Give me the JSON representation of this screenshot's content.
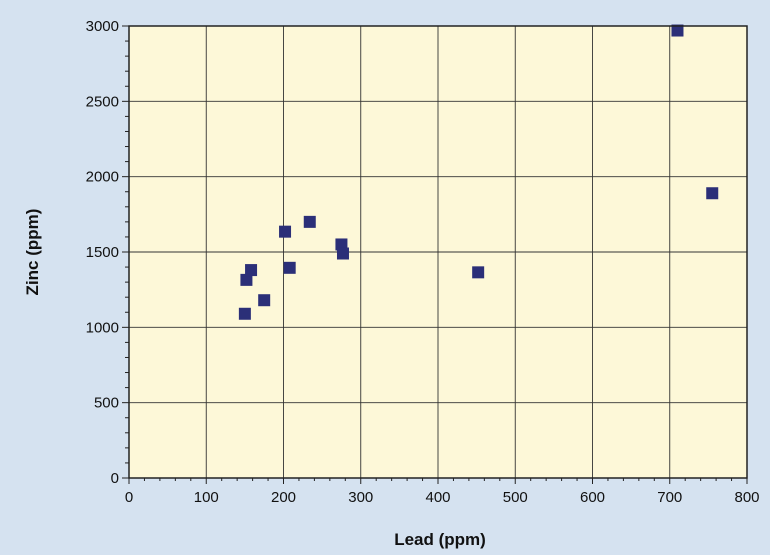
{
  "chart_data": {
    "type": "scatter",
    "title": "",
    "xlabel": "Lead (ppm)",
    "ylabel": "Zinc (ppm)",
    "xlim": [
      0,
      800
    ],
    "ylim": [
      0,
      3000
    ],
    "x_ticks": [
      0,
      100,
      200,
      300,
      400,
      500,
      600,
      700,
      800
    ],
    "y_ticks": [
      0,
      500,
      1000,
      1500,
      2000,
      2500,
      3000
    ],
    "grid": true,
    "legend": "none",
    "colors": {
      "page_background": "#d5e2f0",
      "plot_background": "#fdf8d8",
      "grid": "#333333",
      "marker": "#2b2f78"
    },
    "series": [
      {
        "marker": "square",
        "points": [
          {
            "x": 150,
            "y": 1090
          },
          {
            "x": 152,
            "y": 1315
          },
          {
            "x": 158,
            "y": 1380
          },
          {
            "x": 175,
            "y": 1180
          },
          {
            "x": 202,
            "y": 1635
          },
          {
            "x": 208,
            "y": 1395
          },
          {
            "x": 234,
            "y": 1700
          },
          {
            "x": 275,
            "y": 1550
          },
          {
            "x": 277,
            "y": 1490
          },
          {
            "x": 452,
            "y": 1365
          },
          {
            "x": 710,
            "y": 2970
          },
          {
            "x": 755,
            "y": 1890
          }
        ]
      }
    ]
  }
}
